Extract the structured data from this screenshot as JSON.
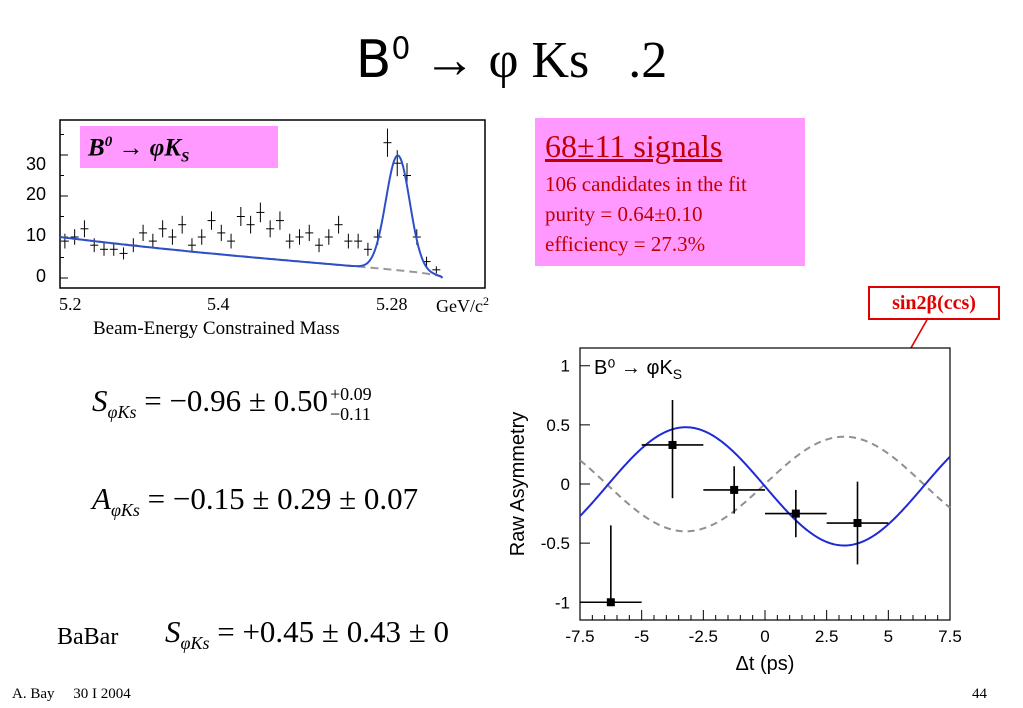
{
  "title": {
    "prefix": "B",
    "sup": "0",
    "arrow": "→",
    "phi": "φ",
    "rest": "Ks",
    "suffix": "   .2"
  },
  "info": {
    "head": "68±11 signals",
    "line1": "106 candidates in the fit",
    "line2": "purity = 0.64±0.10",
    "line3": "efficiency = 27.3%"
  },
  "sin_label": "sin2β(ccs)",
  "mass_plot": {
    "legend": {
      "b": "B",
      "sup": "0",
      "arrow": " → ",
      "phi": "φK",
      "sub": "S"
    },
    "y_ticks": [
      "30",
      "20",
      "10",
      "0"
    ],
    "x_ticks": [
      "5.2",
      "5.4",
      "5.28",
      "GeV/c"
    ],
    "unit_sup": "2",
    "xlabel": "Beam-Energy Constrained Mass"
  },
  "eq1": {
    "lhs": "S",
    "sub": "φKs",
    "rhs": " = −0.96 ± 0.50",
    "plus": "+0.09",
    "minus": "−0.11"
  },
  "eq2": {
    "lhs": "A",
    "sub": "φKs",
    "rhs": " = −0.15 ± 0.29 ± 0.07"
  },
  "eq3": {
    "prefix": "BaBar",
    "lhs": "S",
    "sub": "φKs",
    "rhs": " = +0.45 ± 0.43 ± 0"
  },
  "chart_data": {
    "type": "scatter",
    "title": "",
    "legend_text": "B⁰ → φK",
    "legend_sub": "S",
    "xlabel": "Δt (ps)",
    "ylabel": "Raw Asymmetry",
    "xlim": [
      -7.5,
      7.5
    ],
    "ylim": [
      -1.15,
      1.15
    ],
    "x_ticks": [
      "-7.5",
      "-5",
      "-2.5",
      "0",
      "2.5",
      "5",
      "7.5"
    ],
    "y_ticks": [
      "1",
      "0.5",
      "0",
      "-0.5",
      "-1"
    ],
    "points": [
      {
        "x": -6.25,
        "y": -1.0,
        "xerr": 1.25,
        "yerr_up": 0.65,
        "yerr_dn": 0.0
      },
      {
        "x": -3.75,
        "y": 0.33,
        "xerr": 1.25,
        "yerr_up": 0.38,
        "yerr_dn": 0.45
      },
      {
        "x": -1.25,
        "y": -0.05,
        "xerr": 1.25,
        "yerr_up": 0.2,
        "yerr_dn": 0.2
      },
      {
        "x": 1.25,
        "y": -0.25,
        "xerr": 1.25,
        "yerr_up": 0.2,
        "yerr_dn": 0.2
      },
      {
        "x": 3.75,
        "y": -0.33,
        "xerr": 1.25,
        "yerr_up": 0.35,
        "yerr_dn": 0.35
      }
    ],
    "fit": {
      "amplitude": -0.5,
      "omega": 0.489,
      "offset": -0.02
    },
    "reference": {
      "amplitude": 0.4,
      "omega": 0.489,
      "offset": 0.0
    },
    "colors": {
      "fit": "#1f2ad6",
      "reference": "#909090",
      "points": "#000000"
    }
  }
}
